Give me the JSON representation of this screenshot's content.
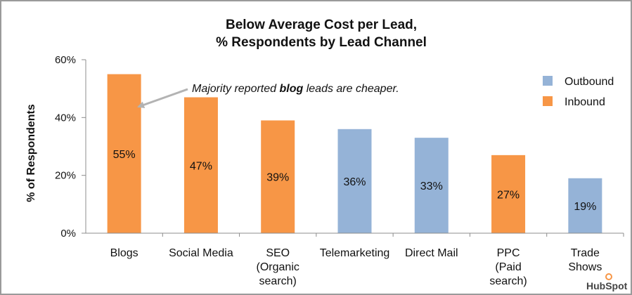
{
  "chart_data": {
    "type": "bar",
    "title": [
      "Below Average Cost per Lead,",
      "% Respondents by Lead Channel"
    ],
    "ylabel": "% of Respondents",
    "xlabel": "",
    "ylim": [
      0,
      60
    ],
    "yticks": [
      "0%",
      "20%",
      "40%",
      "60%"
    ],
    "ytick_values": [
      0,
      20,
      40,
      60
    ],
    "categories": [
      [
        "Blogs"
      ],
      [
        "Social Media"
      ],
      [
        "SEO",
        "(Organic",
        "search)"
      ],
      [
        "Telemarketing"
      ],
      [
        "Direct Mail"
      ],
      [
        "PPC",
        "(Paid",
        "search)"
      ],
      [
        "Trade",
        "Shows"
      ]
    ],
    "values": [
      55,
      47,
      39,
      36,
      33,
      27,
      19
    ],
    "value_labels": [
      "55%",
      "47%",
      "39%",
      "36%",
      "33%",
      "27%",
      "19%"
    ],
    "bar_type": [
      "Inbound",
      "Inbound",
      "Inbound",
      "Outbound",
      "Outbound",
      "Inbound",
      "Outbound"
    ],
    "legend": {
      "position": "top-right",
      "entries": [
        {
          "name": "Outbound",
          "color": "#95b3d7"
        },
        {
          "name": "Inbound",
          "color": "#f79646"
        }
      ]
    },
    "annotation": {
      "parts": [
        {
          "text": "Majority reported ",
          "bold": false
        },
        {
          "text": "blog",
          "bold": true
        },
        {
          "text": " leads are cheaper.",
          "bold": false
        }
      ],
      "points_to": "Blogs"
    },
    "grid": false
  },
  "brand": {
    "logo_text": "HubSpot"
  },
  "colors": {
    "outbound": "#95b3d7",
    "inbound": "#f79646",
    "axis": "#8c8c8c",
    "arrow": "#b3b3b3"
  }
}
